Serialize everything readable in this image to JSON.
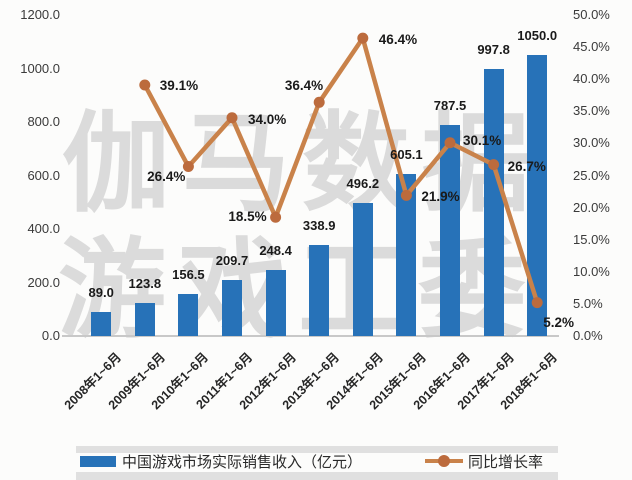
{
  "chart_data": {
    "type": "combo-bar-line",
    "title": "",
    "categories": [
      "2008年1~6月",
      "2009年1~6月",
      "2010年1~6月",
      "2011年1~6月",
      "2012年1~6月",
      "2013年1~6月",
      "2014年1~6月",
      "2015年1~6月",
      "2016年1~6月",
      "2017年1~6月",
      "2018年1~6月"
    ],
    "series": [
      {
        "name": "中国游戏市场实际销售收入（亿元）",
        "type": "bar",
        "axis": "left",
        "color": "#2772b8",
        "values": [
          89.0,
          123.8,
          156.5,
          209.7,
          248.4,
          338.9,
          496.2,
          605.1,
          787.5,
          997.8,
          1050.0
        ],
        "labels": [
          "89.0",
          "123.8",
          "156.5",
          "209.7",
          "248.4",
          "338.9",
          "496.2",
          "605.1",
          "787.5",
          "997.8",
          "1050.0"
        ]
      },
      {
        "name": "同比增长率",
        "type": "line",
        "axis": "right",
        "color": "#c9824a",
        "marker_color": "#bc6b3d",
        "values": [
          null,
          39.1,
          26.4,
          34.0,
          18.5,
          36.4,
          46.4,
          21.9,
          30.1,
          26.7,
          5.2
        ],
        "labels": [
          "",
          "39.1%",
          "26.4%",
          "34.0%",
          "18.5%",
          "36.4%",
          "46.4%",
          "21.9%",
          "30.1%",
          "26.7%",
          "5.2%"
        ]
      }
    ],
    "left_axis": {
      "min": 0,
      "max": 1200,
      "step": 200,
      "tick_labels": [
        "1200.0",
        "1000.0",
        "800.0",
        "600.0",
        "400.0",
        "200.0",
        "0.0"
      ]
    },
    "right_axis": {
      "min": 0,
      "max": 50,
      "step": 5,
      "tick_labels": [
        "50.0%",
        "45.0%",
        "40.0%",
        "35.0%",
        "30.0%",
        "25.0%",
        "20.0%",
        "15.0%",
        "10.0%",
        "5.0%",
        "0.0%"
      ]
    },
    "grid": false,
    "legend_position": "bottom",
    "legend": [
      {
        "label": "中国游戏市场实际销售收入（亿元）",
        "swatch": "bar"
      },
      {
        "label": "同比增长率",
        "swatch": "line"
      }
    ],
    "watermark": {
      "rows": [
        "伽马数据",
        "游戏工委"
      ],
      "color": "#dbdbdb"
    }
  }
}
